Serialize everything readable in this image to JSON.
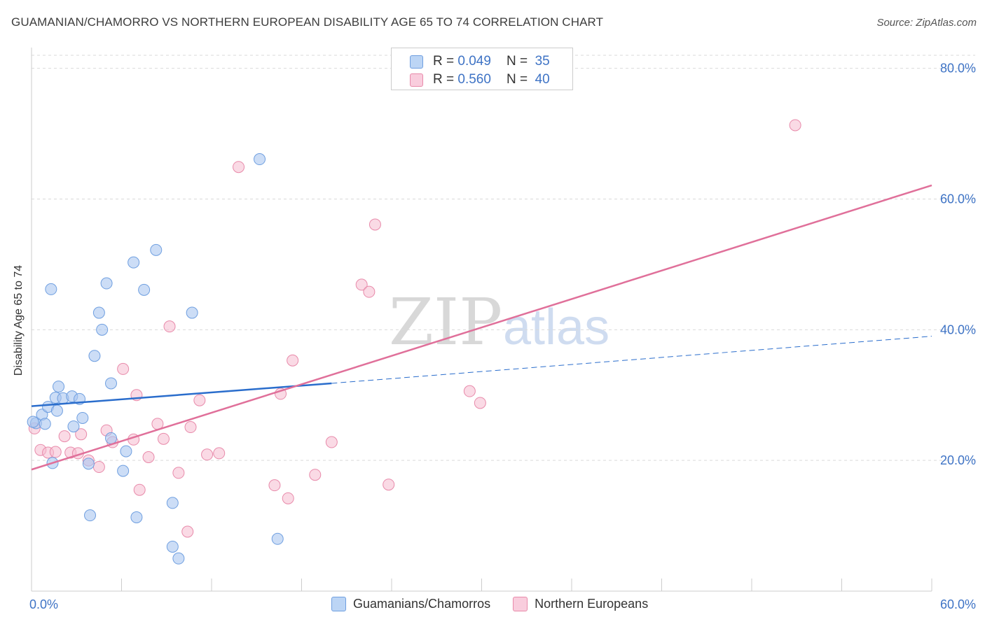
{
  "title": "GUAMANIAN/CHAMORRO VS NORTHERN EUROPEAN DISABILITY AGE 65 TO 74 CORRELATION CHART",
  "source": "Source: ZipAtlas.com",
  "watermark": {
    "zip": "ZIP",
    "atlas": "atlas"
  },
  "legend": {
    "rows": [
      {
        "r_label": "R =",
        "r_value": "0.049",
        "n_label": "N =",
        "n_value": "35"
      },
      {
        "r_label": "R =",
        "r_value": "0.560",
        "n_label": "N =",
        "n_value": "40"
      }
    ]
  },
  "colors": {
    "blue_fill": "#aac7f0",
    "blue_stroke": "#6f9fe0",
    "blue_line": "#2a6dcc",
    "pink_fill": "#f6bcd0",
    "pink_stroke": "#e88aaa",
    "pink_line": "#e0709a",
    "grid": "#d9d9d9",
    "axis_text": "#3e73c5"
  },
  "chart_data": {
    "type": "scatter",
    "title": "GUAMANIAN/CHAMORRO VS NORTHERN EUROPEAN DISABILITY AGE 65 TO 74 CORRELATION CHART",
    "xlabel": "",
    "ylabel": "Disability Age 65 to 74",
    "xlim": [
      0,
      60
    ],
    "ylim": [
      0,
      82
    ],
    "x_tick_labels": [
      {
        "value": 0,
        "label": "0.0%"
      },
      {
        "value": 60,
        "label": "60.0%"
      }
    ],
    "y_tick_labels": [
      {
        "value": 20,
        "label": "20.0%"
      },
      {
        "value": 40,
        "label": "40.0%"
      },
      {
        "value": 60,
        "label": "60.0%"
      },
      {
        "value": 80,
        "label": "80.0%"
      }
    ],
    "x_minor_ticks": [
      6,
      12,
      18,
      24,
      30,
      36,
      42,
      48,
      54,
      60
    ],
    "grid": true,
    "legend_position": "top-center",
    "series": [
      {
        "name": "Guamanians/Chamorros",
        "R": 0.049,
        "N": 35,
        "points": [
          [
            0.3,
            25.7
          ],
          [
            0.7,
            27.0
          ],
          [
            0.9,
            25.6
          ],
          [
            1.1,
            28.2
          ],
          [
            1.3,
            46.2
          ],
          [
            1.4,
            19.6
          ],
          [
            1.6,
            29.6
          ],
          [
            1.7,
            27.6
          ],
          [
            1.8,
            31.3
          ],
          [
            2.1,
            29.5
          ],
          [
            2.7,
            29.8
          ],
          [
            2.8,
            25.2
          ],
          [
            3.2,
            29.4
          ],
          [
            3.4,
            26.5
          ],
          [
            3.8,
            19.5
          ],
          [
            3.9,
            11.6
          ],
          [
            4.2,
            36.0
          ],
          [
            4.5,
            42.6
          ],
          [
            4.7,
            40.0
          ],
          [
            5.0,
            47.1
          ],
          [
            5.3,
            31.8
          ],
          [
            5.3,
            23.4
          ],
          [
            6.1,
            18.4
          ],
          [
            6.3,
            21.4
          ],
          [
            6.8,
            50.3
          ],
          [
            7.0,
            11.3
          ],
          [
            7.5,
            46.1
          ],
          [
            8.3,
            52.2
          ],
          [
            9.4,
            13.5
          ],
          [
            9.4,
            6.8
          ],
          [
            9.8,
            5.0
          ],
          [
            10.7,
            42.6
          ],
          [
            15.2,
            66.1
          ],
          [
            16.4,
            8.0
          ],
          [
            0.1,
            25.9
          ]
        ],
        "trend": {
          "x": [
            0,
            20
          ],
          "y": [
            28.3,
            31.8
          ],
          "dashed_to": [
            60,
            39.0
          ]
        }
      },
      {
        "name": "Northern Europeans",
        "R": 0.56,
        "N": 40,
        "points": [
          [
            0.2,
            24.9
          ],
          [
            0.6,
            21.6
          ],
          [
            1.1,
            21.2
          ],
          [
            1.6,
            21.3
          ],
          [
            2.2,
            23.7
          ],
          [
            2.6,
            21.2
          ],
          [
            3.1,
            21.1
          ],
          [
            3.3,
            24.0
          ],
          [
            3.8,
            20.0
          ],
          [
            4.5,
            19.0
          ],
          [
            5.0,
            24.6
          ],
          [
            5.4,
            22.8
          ],
          [
            6.1,
            34.0
          ],
          [
            6.8,
            23.2
          ],
          [
            7.0,
            30.0
          ],
          [
            7.2,
            15.5
          ],
          [
            7.8,
            20.5
          ],
          [
            8.4,
            25.6
          ],
          [
            8.8,
            23.3
          ],
          [
            9.2,
            40.5
          ],
          [
            9.8,
            18.1
          ],
          [
            10.4,
            9.1
          ],
          [
            10.6,
            25.1
          ],
          [
            11.2,
            29.2
          ],
          [
            11.7,
            20.9
          ],
          [
            12.5,
            21.1
          ],
          [
            13.8,
            64.9
          ],
          [
            16.2,
            16.2
          ],
          [
            16.6,
            30.2
          ],
          [
            17.1,
            14.2
          ],
          [
            17.4,
            35.3
          ],
          [
            18.9,
            17.8
          ],
          [
            20.0,
            22.8
          ],
          [
            22.0,
            46.9
          ],
          [
            22.5,
            45.8
          ],
          [
            22.9,
            56.1
          ],
          [
            23.8,
            16.3
          ],
          [
            29.2,
            30.6
          ],
          [
            29.9,
            28.8
          ],
          [
            50.9,
            71.3
          ]
        ],
        "trend": {
          "x": [
            0,
            60
          ],
          "y": [
            18.6,
            62.1
          ]
        }
      }
    ]
  },
  "bottom_legend": [
    "Guamanians/Chamorros",
    "Northern Europeans"
  ]
}
